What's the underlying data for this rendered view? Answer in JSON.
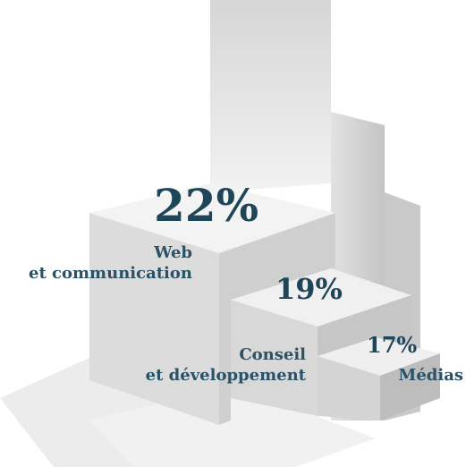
{
  "items": [
    {
      "value": "22%",
      "label": [
        "Web",
        "et communication"
      ]
    },
    {
      "value": "19%",
      "label": [
        "Conseil",
        "et développement"
      ]
    },
    {
      "value": "17%",
      "label": [
        "Médias"
      ]
    }
  ]
}
